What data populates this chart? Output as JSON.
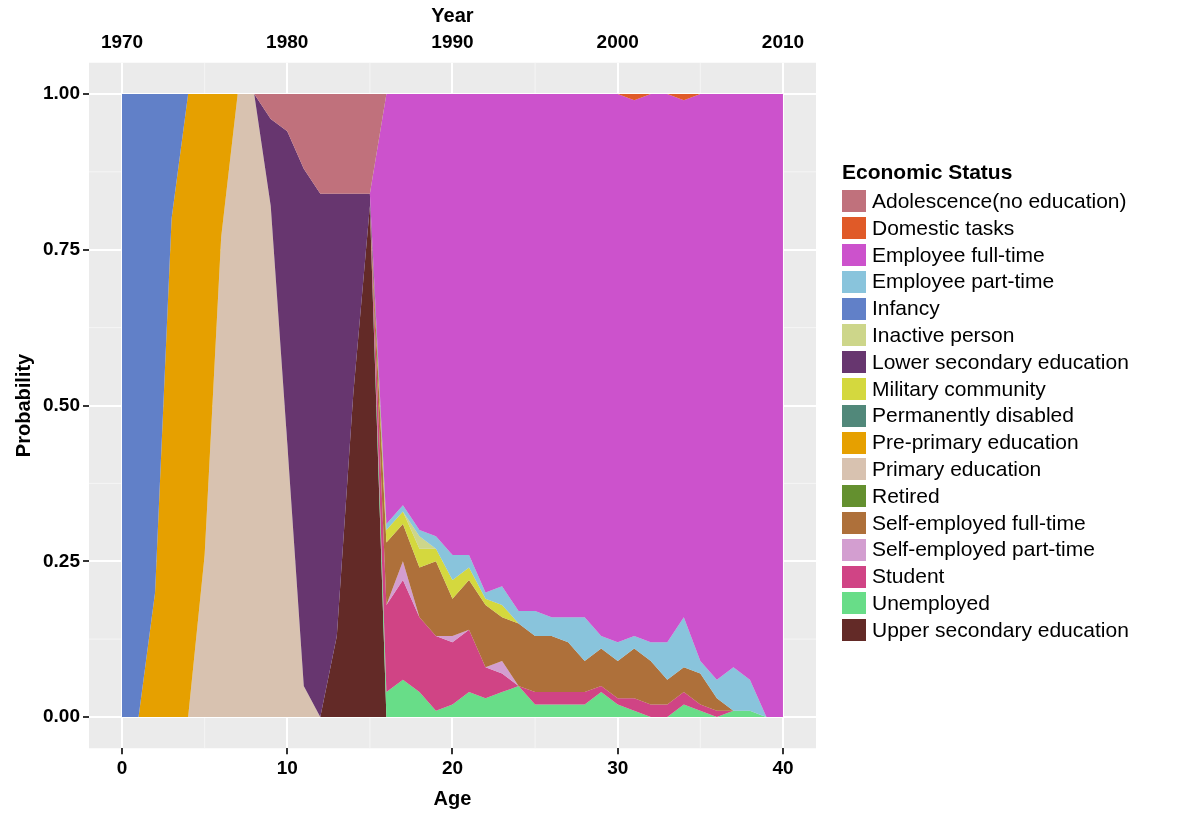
{
  "chart_data": {
    "type": "area",
    "stacked": true,
    "x": [
      0,
      1,
      2,
      3,
      4,
      5,
      6,
      7,
      8,
      9,
      10,
      11,
      12,
      13,
      14,
      15,
      16,
      17,
      18,
      19,
      20,
      21,
      22,
      23,
      24,
      25,
      26,
      27,
      28,
      29,
      30,
      31,
      32,
      33,
      34,
      35,
      36,
      37,
      38,
      39,
      40
    ],
    "xlabel": "Age",
    "ylabel": "Probability",
    "x2label": "Year",
    "legend_title": "Economic Status",
    "legend": "right",
    "grid": true,
    "xlim": [
      -2,
      42
    ],
    "xticks": [
      0,
      10,
      20,
      30,
      40
    ],
    "x2lim": [
      1968,
      2012
    ],
    "x2ticks": [
      1970,
      1980,
      1990,
      2000,
      2010
    ],
    "ylim": [
      -0.05,
      1.05
    ],
    "yticks": [
      {
        "value": 0,
        "label": "0.00"
      },
      {
        "value": 0.25,
        "label": "0.25"
      },
      {
        "value": 0.5,
        "label": "0.50"
      },
      {
        "value": 0.75,
        "label": "0.75"
      },
      {
        "value": 1,
        "label": "1.00"
      }
    ],
    "series": [
      {
        "name": "Upper secondary education",
        "color": "#632a27",
        "values": [
          null,
          null,
          null,
          null,
          null,
          null,
          null,
          null,
          null,
          null,
          null,
          null,
          0,
          0.13,
          0.52,
          0.82,
          0,
          null,
          null,
          null,
          null,
          null,
          null,
          null,
          null,
          null,
          null,
          null,
          null,
          null,
          null,
          null,
          null,
          null,
          null,
          null,
          null,
          null,
          null,
          null,
          null
        ]
      },
      {
        "name": "Unemployed",
        "color": "#68dd88",
        "values": [
          null,
          null,
          null,
          null,
          null,
          null,
          null,
          null,
          null,
          null,
          null,
          null,
          null,
          null,
          null,
          0,
          0.04,
          0.06,
          0.04,
          0.01,
          0.02,
          0.04,
          0.03,
          0.04,
          0.05,
          0.02,
          0.02,
          0.02,
          0.02,
          0.04,
          0.02,
          0.01,
          0,
          0,
          0.02,
          0.01,
          0,
          0.01,
          0.01,
          0,
          0
        ]
      },
      {
        "name": "Student",
        "color": "#d04485",
        "values": [
          null,
          null,
          null,
          null,
          null,
          null,
          null,
          null,
          null,
          null,
          null,
          null,
          null,
          null,
          null,
          0,
          0.14,
          0.16,
          0.12,
          0.12,
          0.1,
          0.1,
          0.05,
          0.03,
          0,
          0.02,
          0.02,
          0.02,
          0.02,
          0.01,
          0.01,
          0.02,
          0.02,
          0.02,
          0.02,
          0.01,
          0.01,
          0,
          null,
          null,
          null
        ]
      },
      {
        "name": "Self-employed part-time",
        "color": "#d39ed0",
        "values": [
          null,
          null,
          null,
          null,
          null,
          null,
          null,
          null,
          null,
          null,
          null,
          null,
          null,
          null,
          null,
          null,
          0,
          0.03,
          0,
          0,
          0.01,
          0,
          0,
          0.02,
          0,
          null,
          null,
          null,
          null,
          null,
          null,
          null,
          null,
          null,
          null,
          null,
          null,
          null,
          null,
          null,
          null
        ]
      },
      {
        "name": "Self-employed full-time",
        "color": "#ae703a",
        "values": [
          null,
          null,
          null,
          null,
          null,
          null,
          null,
          null,
          null,
          null,
          null,
          null,
          null,
          null,
          null,
          0,
          0.1,
          0.06,
          0.08,
          0.12,
          0.06,
          0.08,
          0.1,
          0.07,
          0.1,
          0.09,
          0.09,
          0.08,
          0.05,
          0.06,
          0.06,
          0.08,
          0.07,
          0.04,
          0.04,
          0.05,
          0.02,
          0,
          null,
          null,
          null
        ]
      },
      {
        "name": "Retired",
        "color": "#64902f",
        "values": [
          null,
          null,
          null,
          null,
          null,
          null,
          null,
          null,
          null,
          null,
          null,
          null,
          null,
          null,
          null,
          null,
          null,
          null,
          null,
          null,
          null,
          null,
          null,
          null,
          null,
          null,
          null,
          null,
          null,
          null,
          null,
          null,
          null,
          null,
          null,
          null,
          null,
          null,
          null,
          null,
          null
        ]
      },
      {
        "name": "Primary education",
        "color": "#d8c2b0",
        "values": [
          null,
          null,
          null,
          null,
          0,
          0.26,
          0.77,
          1,
          1,
          0.82,
          0.44,
          0.05,
          0,
          null,
          null,
          null,
          null,
          null,
          null,
          null,
          null,
          null,
          null,
          null,
          null,
          null,
          null,
          null,
          null,
          null,
          null,
          null,
          null,
          null,
          null,
          null,
          null,
          null,
          null,
          null,
          null
        ]
      },
      {
        "name": "Pre-primary education",
        "color": "#e6a000",
        "values": [
          null,
          0,
          0.2,
          0.8,
          1,
          0.74,
          0.23,
          0,
          null,
          null,
          null,
          null,
          null,
          null,
          null,
          null,
          null,
          null,
          null,
          null,
          null,
          null,
          null,
          null,
          null,
          null,
          null,
          null,
          null,
          null,
          null,
          null,
          null,
          null,
          null,
          null,
          null,
          null,
          null,
          null,
          null
        ]
      },
      {
        "name": "Permanently disabled",
        "color": "#51887a",
        "values": [
          null,
          null,
          null,
          null,
          null,
          null,
          null,
          null,
          null,
          null,
          null,
          null,
          null,
          null,
          null,
          null,
          null,
          null,
          null,
          null,
          null,
          null,
          null,
          null,
          null,
          null,
          null,
          null,
          null,
          null,
          null,
          null,
          null,
          null,
          null,
          null,
          null,
          null,
          null,
          null,
          null
        ]
      },
      {
        "name": "Military community",
        "color": "#d4d83e",
        "values": [
          null,
          null,
          null,
          null,
          null,
          null,
          null,
          null,
          null,
          null,
          null,
          null,
          null,
          null,
          null,
          0,
          0.02,
          0.02,
          0.03,
          0.02,
          0.03,
          0.02,
          0.01,
          0.02,
          0,
          null,
          null,
          null,
          null,
          null,
          null,
          null,
          null,
          null,
          null,
          null,
          null,
          null,
          null,
          null,
          null
        ]
      },
      {
        "name": "Lower secondary education",
        "color": "#67366f",
        "values": [
          null,
          null,
          null,
          null,
          null,
          null,
          null,
          null,
          0,
          0.14,
          0.5,
          0.83,
          0.84,
          0.71,
          0.32,
          0.02,
          0,
          null,
          null,
          null,
          null,
          null,
          null,
          null,
          null,
          null,
          null,
          null,
          null,
          null,
          null,
          null,
          null,
          null,
          null,
          null,
          null,
          null,
          null,
          null,
          null
        ]
      },
      {
        "name": "Inactive person",
        "color": "#cdd68a",
        "values": [
          null,
          null,
          null,
          null,
          null,
          null,
          null,
          null,
          null,
          null,
          null,
          null,
          null,
          null,
          null,
          null,
          null,
          0,
          0.02,
          0,
          null,
          null,
          null,
          null,
          null,
          null,
          null,
          null,
          null,
          null,
          null,
          null,
          null,
          null,
          null,
          null,
          null,
          null,
          null,
          null,
          null
        ]
      },
      {
        "name": "Infancy",
        "color": "#6180c8",
        "values": [
          1,
          1,
          0.8,
          0.2,
          0,
          null,
          null,
          null,
          null,
          null,
          null,
          null,
          null,
          null,
          null,
          null,
          null,
          null,
          null,
          null,
          null,
          null,
          null,
          null,
          null,
          null,
          null,
          null,
          null,
          null,
          null,
          null,
          null,
          null,
          null,
          null,
          null,
          null,
          null,
          null,
          null
        ]
      },
      {
        "name": "Employee part-time",
        "color": "#89c4dc",
        "values": [
          null,
          null,
          null,
          null,
          null,
          null,
          null,
          null,
          null,
          null,
          null,
          null,
          null,
          null,
          null,
          0,
          0.01,
          0.01,
          0.01,
          0.02,
          0.04,
          0.02,
          0.01,
          0.03,
          0.02,
          0.04,
          0.03,
          0.04,
          0.07,
          0.02,
          0.03,
          0.02,
          0.03,
          0.06,
          0.08,
          0.02,
          0.03,
          0.07,
          0.05,
          0,
          null
        ]
      },
      {
        "name": "Employee full-time",
        "color": "#cc52cc",
        "values": [
          null,
          null,
          null,
          null,
          null,
          null,
          null,
          null,
          null,
          null,
          null,
          null,
          null,
          null,
          null,
          0,
          0.69,
          0.66,
          0.7,
          0.71,
          0.74,
          0.74,
          0.8,
          0.79,
          0.83,
          0.83,
          0.84,
          0.84,
          0.84,
          0.87,
          0.88,
          0.86,
          0.88,
          0.88,
          0.83,
          0.91,
          0.94,
          0.92,
          0.94,
          1,
          1
        ]
      },
      {
        "name": "Domestic tasks",
        "color": "#e05a28",
        "values": [
          null,
          null,
          null,
          null,
          null,
          null,
          null,
          null,
          null,
          null,
          null,
          null,
          null,
          null,
          null,
          null,
          null,
          null,
          null,
          null,
          null,
          null,
          null,
          null,
          null,
          null,
          null,
          null,
          null,
          null,
          0,
          0.01,
          0,
          0,
          0.01,
          0,
          null,
          null,
          null,
          null,
          null
        ]
      },
      {
        "name": "Adolescence(no education)",
        "color": "#c0717c",
        "values": [
          null,
          null,
          null,
          null,
          null,
          null,
          null,
          null,
          0,
          0.04,
          0.06,
          0.12,
          0.16,
          0.16,
          0.16,
          0.16,
          0,
          null,
          null,
          null,
          null,
          null,
          null,
          null,
          null,
          null,
          null,
          null,
          null,
          null,
          null,
          null,
          null,
          null,
          null,
          null,
          null,
          null,
          null,
          null,
          null
        ]
      }
    ]
  }
}
